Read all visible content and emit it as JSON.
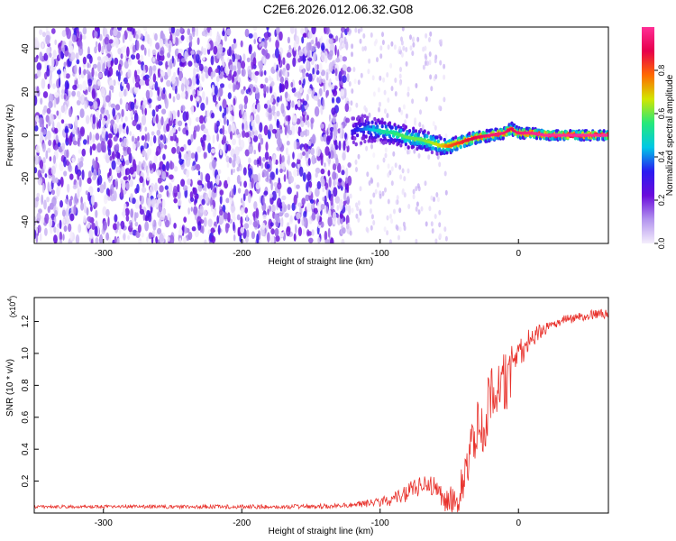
{
  "title": "C2E6.2026.012.06.32.G08",
  "chart_data": [
    {
      "type": "heatmap",
      "name": "spectrogram",
      "xlabel": "Height of straight line (km)",
      "ylabel": "Frequency (Hz)",
      "xlim": [
        -350,
        65
      ],
      "ylim": [
        -50,
        50
      ],
      "x_ticks": [
        -300,
        -200,
        -100,
        0
      ],
      "x_tick_labels": [
        "-300",
        "-200",
        "-100",
        "0"
      ],
      "y_ticks": [
        40,
        20,
        0,
        -20,
        -40
      ],
      "y_tick_labels": [
        "40",
        "20",
        "0",
        "-20",
        "-40"
      ],
      "colorbar": {
        "label": "Normalized spectral amplitude",
        "range": [
          0,
          1
        ],
        "ticks": [
          0,
          0.2,
          0.4,
          0.6,
          0.8
        ],
        "tick_labels": [
          "0.0",
          "0.2",
          "0.4",
          "0.6",
          "0.8"
        ],
        "colors": [
          "#f4eefc",
          "#b394ee",
          "#6a0bdb",
          "#2a1af0",
          "#00c8e6",
          "#25e87a",
          "#d2e600",
          "#ff6a00",
          "#e6004c",
          "#ff2f96"
        ]
      },
      "noise_region_x": [
        -350,
        -122
      ],
      "signal_track": {
        "x": [
          -120,
          -110,
          -100,
          -90,
          -80,
          -70,
          -60,
          -55,
          -50,
          -40,
          -30,
          -20,
          -10,
          -5,
          0,
          10,
          20,
          30,
          40,
          50,
          65
        ],
        "y": [
          2,
          3,
          2,
          1,
          -1,
          -2,
          -4,
          -5,
          -5,
          -3,
          -1,
          0,
          1,
          3,
          1,
          1,
          0,
          0,
          0,
          0,
          0
        ],
        "amplitude": [
          0.3,
          0.4,
          0.5,
          0.55,
          0.6,
          0.6,
          0.65,
          0.7,
          0.8,
          0.85,
          0.9,
          0.95,
          0.95,
          0.9,
          0.95,
          0.98,
          1,
          1,
          1,
          1,
          1
        ]
      }
    },
    {
      "type": "line",
      "name": "snr",
      "xlabel": "Height of straight line (km)",
      "ylabel": "SNR (10 * v/v)",
      "multiplier_label": "(x10",
      "multiplier_exponent": "4",
      "multiplier_close": ")",
      "xlim": [
        -350,
        65
      ],
      "ylim": [
        0,
        1.35
      ],
      "x_ticks": [
        -300,
        -200,
        -100,
        0
      ],
      "x_tick_labels": [
        "-300",
        "-200",
        "-100",
        "0"
      ],
      "y_ticks": [
        0.2,
        0.4,
        0.6,
        0.8,
        1.0,
        1.2
      ],
      "y_tick_labels": [
        "0.2",
        "0.4",
        "0.6",
        "0.8",
        "1.0",
        "1.2"
      ],
      "line_color": "#e8302a",
      "envelope": {
        "x": [
          -350,
          -200,
          -150,
          -120,
          -100,
          -90,
          -80,
          -75,
          -70,
          -60,
          -55,
          -50,
          -45,
          -40,
          -35,
          -30,
          -25,
          -20,
          -15,
          -10,
          -5,
          0,
          10,
          20,
          30,
          40,
          50,
          65
        ],
        "y": [
          0.04,
          0.04,
          0.04,
          0.05,
          0.07,
          0.09,
          0.13,
          0.15,
          0.18,
          0.16,
          0.1,
          0.07,
          0.08,
          0.2,
          0.4,
          0.5,
          0.6,
          0.68,
          0.75,
          0.8,
          0.9,
          1.0,
          1.1,
          1.16,
          1.2,
          1.22,
          1.24,
          1.25
        ]
      },
      "noise_amplitude": {
        "x": [
          -350,
          -120,
          -100,
          -80,
          -60,
          -40,
          -30,
          -20,
          -10,
          0,
          10,
          20,
          40,
          65
        ],
        "y": [
          0.01,
          0.015,
          0.03,
          0.06,
          0.07,
          0.12,
          0.2,
          0.22,
          0.2,
          0.12,
          0.06,
          0.04,
          0.03,
          0.03
        ]
      }
    }
  ]
}
